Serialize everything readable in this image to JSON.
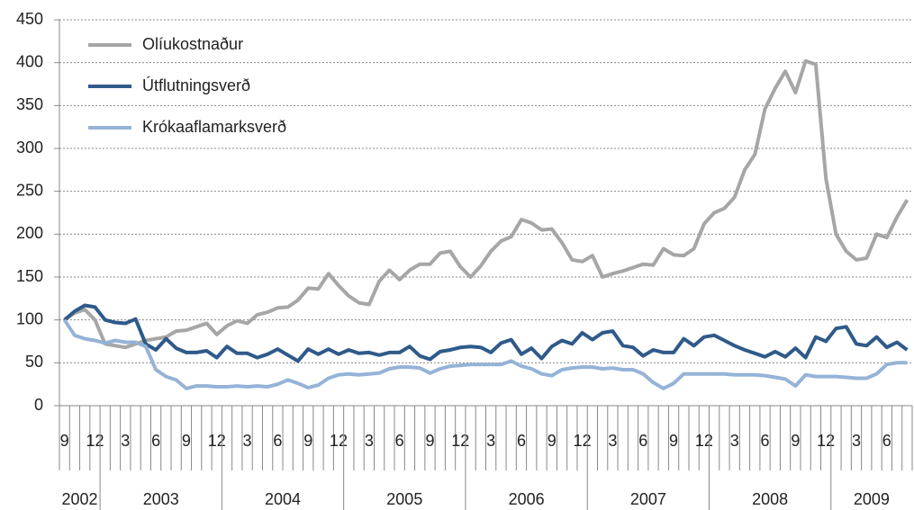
{
  "chart_data": {
    "type": "line",
    "categories": [
      "9",
      null,
      null,
      "12",
      null,
      null,
      "3",
      null,
      null,
      "6",
      null,
      null,
      "9",
      null,
      null,
      "12",
      null,
      null,
      "3",
      null,
      null,
      "6",
      null,
      null,
      "9",
      null,
      null,
      "12",
      null,
      null,
      "3",
      null,
      null,
      "6",
      null,
      null,
      "9",
      null,
      null,
      "12",
      null,
      null,
      "3",
      null,
      null,
      "6",
      null,
      null,
      "9",
      null,
      null,
      "12",
      null,
      null,
      "3",
      null,
      null,
      "6",
      null,
      null,
      "9",
      null,
      null,
      "12",
      null,
      null,
      "3",
      null,
      null,
      "6",
      null,
      null,
      "9",
      null,
      null,
      "12",
      null,
      null,
      "3",
      null,
      null,
      "6",
      null,
      null
    ],
    "years": [
      "2002",
      "2003",
      "2004",
      "2005",
      "2006",
      "2007",
      "2008",
      "2009"
    ],
    "series": [
      {
        "name": "Olíukostnaður",
        "color": "#a6a6a6",
        "values": [
          100,
          108,
          112,
          100,
          72,
          70,
          68,
          72,
          76,
          78,
          80,
          87,
          88,
          92,
          96,
          83,
          93,
          99,
          96,
          106,
          109,
          114,
          115,
          123,
          137,
          136,
          154,
          140,
          128,
          120,
          118,
          145,
          158,
          147,
          158,
          165,
          165,
          178,
          180,
          162,
          150,
          163,
          180,
          192,
          197,
          217,
          213,
          205,
          206,
          190,
          170,
          168,
          175,
          150,
          154,
          157,
          161,
          165,
          164,
          183,
          176,
          175,
          183,
          212,
          225,
          230,
          243,
          275,
          293,
          346,
          370,
          390,
          365,
          402,
          398,
          265,
          200,
          180,
          170,
          172,
          200,
          196,
          220,
          240
        ]
      },
      {
        "name": "Útflutningsverð",
        "color": "#2f5a8a",
        "values": [
          100,
          110,
          117,
          115,
          100,
          97,
          96,
          101,
          72,
          65,
          78,
          67,
          62,
          62,
          64,
          56,
          69,
          61,
          61,
          56,
          60,
          66,
          59,
          52,
          66,
          60,
          66,
          60,
          65,
          61,
          62,
          59,
          62,
          62,
          69,
          58,
          54,
          63,
          65,
          68,
          69,
          68,
          62,
          73,
          77,
          60,
          67,
          55,
          69,
          76,
          72,
          85,
          77,
          85,
          87,
          70,
          68,
          58,
          65,
          62,
          62,
          78,
          70,
          80,
          82,
          76,
          70,
          65,
          61,
          57,
          63,
          57,
          67,
          56,
          80,
          75,
          90,
          92,
          72,
          70,
          80,
          68,
          74,
          65
        ]
      },
      {
        "name": "Krókaaflamarksverð",
        "color": "#95b3d7",
        "values": [
          100,
          82,
          78,
          76,
          73,
          76,
          74,
          74,
          69,
          42,
          34,
          30,
          20,
          23,
          23,
          22,
          22,
          23,
          22,
          23,
          22,
          25,
          30,
          26,
          21,
          24,
          32,
          36,
          37,
          36,
          37,
          38,
          43,
          45,
          45,
          44,
          38,
          43,
          46,
          47,
          48,
          48,
          48,
          48,
          52,
          46,
          43,
          37,
          35,
          42,
          44,
          45,
          45,
          43,
          44,
          42,
          42,
          37,
          27,
          20,
          26,
          37,
          37,
          37,
          37,
          37,
          36,
          36,
          36,
          35,
          33,
          31,
          23,
          36,
          34,
          34,
          34,
          33,
          32,
          32,
          37,
          48,
          50,
          50
        ]
      }
    ],
    "ylim": [
      0,
      450
    ],
    "yticks": [
      0,
      50,
      100,
      150,
      200,
      250,
      300,
      350,
      400,
      450
    ],
    "grid": true,
    "legend": "upper left"
  }
}
